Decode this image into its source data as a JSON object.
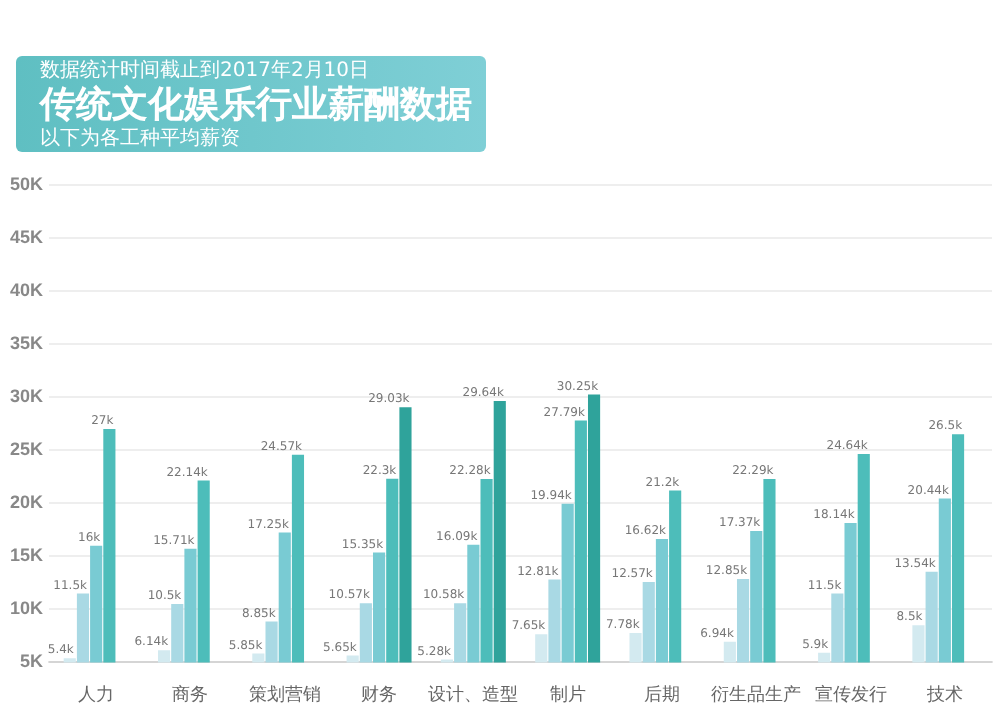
{
  "chart_data": {
    "type": "bar",
    "title": "传统文化娱乐行业薪酬数据",
    "subtitle": "数据统计时间截止到2017年2月10日",
    "annotations": [
      "以下为各工种平均薪资"
    ],
    "categories": [
      "人力",
      "商务",
      "策划营销",
      "财务",
      "设计、造型",
      "制片",
      "后期",
      "衍生品生产",
      "宣传发行",
      "技术"
    ],
    "series": [
      {
        "color": "#d3eaf0",
        "values": [
          5.4,
          6.14,
          5.85,
          5.65,
          5.28,
          7.65,
          7.78,
          6.94,
          5.9,
          8.5
        ],
        "value_labels": [
          "5.4k",
          "6.14k",
          "5.85k",
          "5.65k",
          "5.28k",
          "7.65k",
          "7.78k",
          "6.94k",
          "5.9k",
          "8.5k"
        ]
      },
      {
        "color": "#a9d9e4",
        "values": [
          11.5,
          10.5,
          8.85,
          10.57,
          10.58,
          12.81,
          12.57,
          12.85,
          11.5,
          13.54
        ],
        "value_labels": [
          "11.5k",
          "10.5k",
          "8.85k",
          "10.57k",
          "10.58k",
          "12.81k",
          "12.57k",
          "12.85k",
          "11.5k",
          "13.54k"
        ]
      },
      {
        "color": "#79cbd3",
        "values": [
          16,
          15.71,
          17.25,
          15.35,
          16.09,
          19.94,
          16.62,
          17.37,
          18.14,
          20.44
        ],
        "value_labels": [
          "16k",
          "15.71k",
          "17.25k",
          "15.35k",
          "16.09k",
          "19.94k",
          "16.62k",
          "17.37k",
          "18.14k",
          "20.44k"
        ]
      },
      {
        "color": "#4dbdba",
        "values": [
          27,
          22.14,
          24.57,
          22.3,
          22.28,
          27.79,
          21.2,
          22.29,
          24.64,
          26.5
        ],
        "value_labels": [
          "27k",
          "22.14k",
          "24.57k",
          "22.3k",
          "22.28k",
          "27.79k",
          "21.2k",
          "22.29k",
          "24.64k",
          "26.5k"
        ]
      },
      {
        "color": "#2fa39b",
        "values": [
          null,
          null,
          null,
          29.03,
          29.64,
          30.25,
          null,
          null,
          null,
          null
        ],
        "value_labels": [
          null,
          null,
          null,
          "29.03k",
          "29.64k",
          "30.25k",
          null,
          null,
          null,
          null
        ]
      }
    ],
    "ylim": [
      5,
      50
    ],
    "yticks": [
      {
        "value": 5,
        "label": "5K"
      },
      {
        "value": 10,
        "label": "10K"
      },
      {
        "value": 15,
        "label": "15K"
      },
      {
        "value": 20,
        "label": "20K"
      },
      {
        "value": 25,
        "label": "25K"
      },
      {
        "value": 30,
        "label": "30K"
      },
      {
        "value": 35,
        "label": "35K"
      },
      {
        "value": 40,
        "label": "40K"
      },
      {
        "value": 45,
        "label": "45K"
      },
      {
        "value": 50,
        "label": "50K"
      }
    ],
    "grid": "y",
    "legend": false
  }
}
